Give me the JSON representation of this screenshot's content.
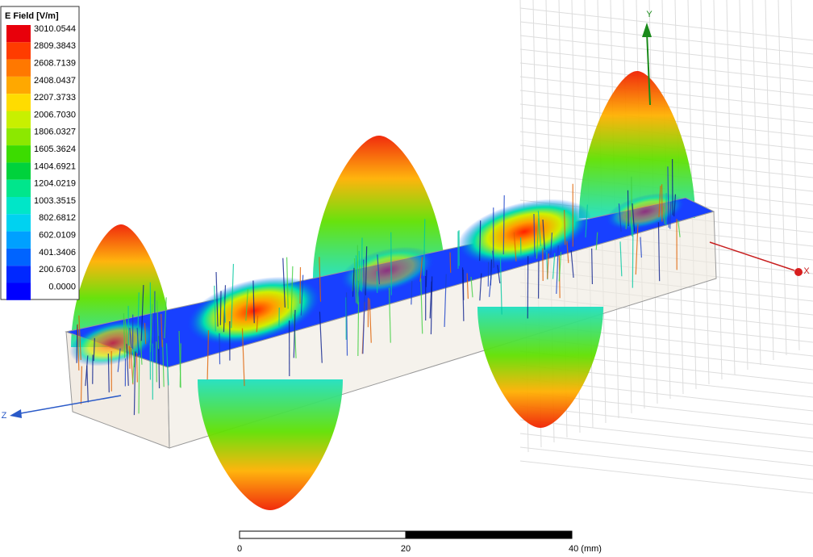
{
  "legend": {
    "title": "E Field [V/m]",
    "levels": [
      {
        "label": "3010.0544",
        "color": "#e8000b"
      },
      {
        "label": "2809.3843",
        "color": "#ff3c00"
      },
      {
        "label": "2608.7139",
        "color": "#ff7800"
      },
      {
        "label": "2408.0437",
        "color": "#ffa800"
      },
      {
        "label": "2207.3733",
        "color": "#ffdc00"
      },
      {
        "label": "2006.7030",
        "color": "#c8f000"
      },
      {
        "label": "1806.0327",
        "color": "#8ce800"
      },
      {
        "label": "1605.3624",
        "color": "#3cdc00"
      },
      {
        "label": "1404.6921",
        "color": "#00d23c"
      },
      {
        "label": "1204.0219",
        "color": "#00e68c"
      },
      {
        "label": "1003.3515",
        "color": "#00e6c8"
      },
      {
        "label": "802.6812",
        "color": "#00d2f0"
      },
      {
        "label": "602.0109",
        "color": "#00a0ff"
      },
      {
        "label": "401.3406",
        "color": "#0064ff"
      },
      {
        "label": "200.6703",
        "color": "#0028ff"
      },
      {
        "label": "0.0000",
        "color": "#0000ff"
      }
    ]
  },
  "axes": {
    "x": "X",
    "y": "Y",
    "z": "Z"
  },
  "scale_bar": {
    "labels": [
      "0",
      "20",
      "40 (mm)"
    ]
  }
}
